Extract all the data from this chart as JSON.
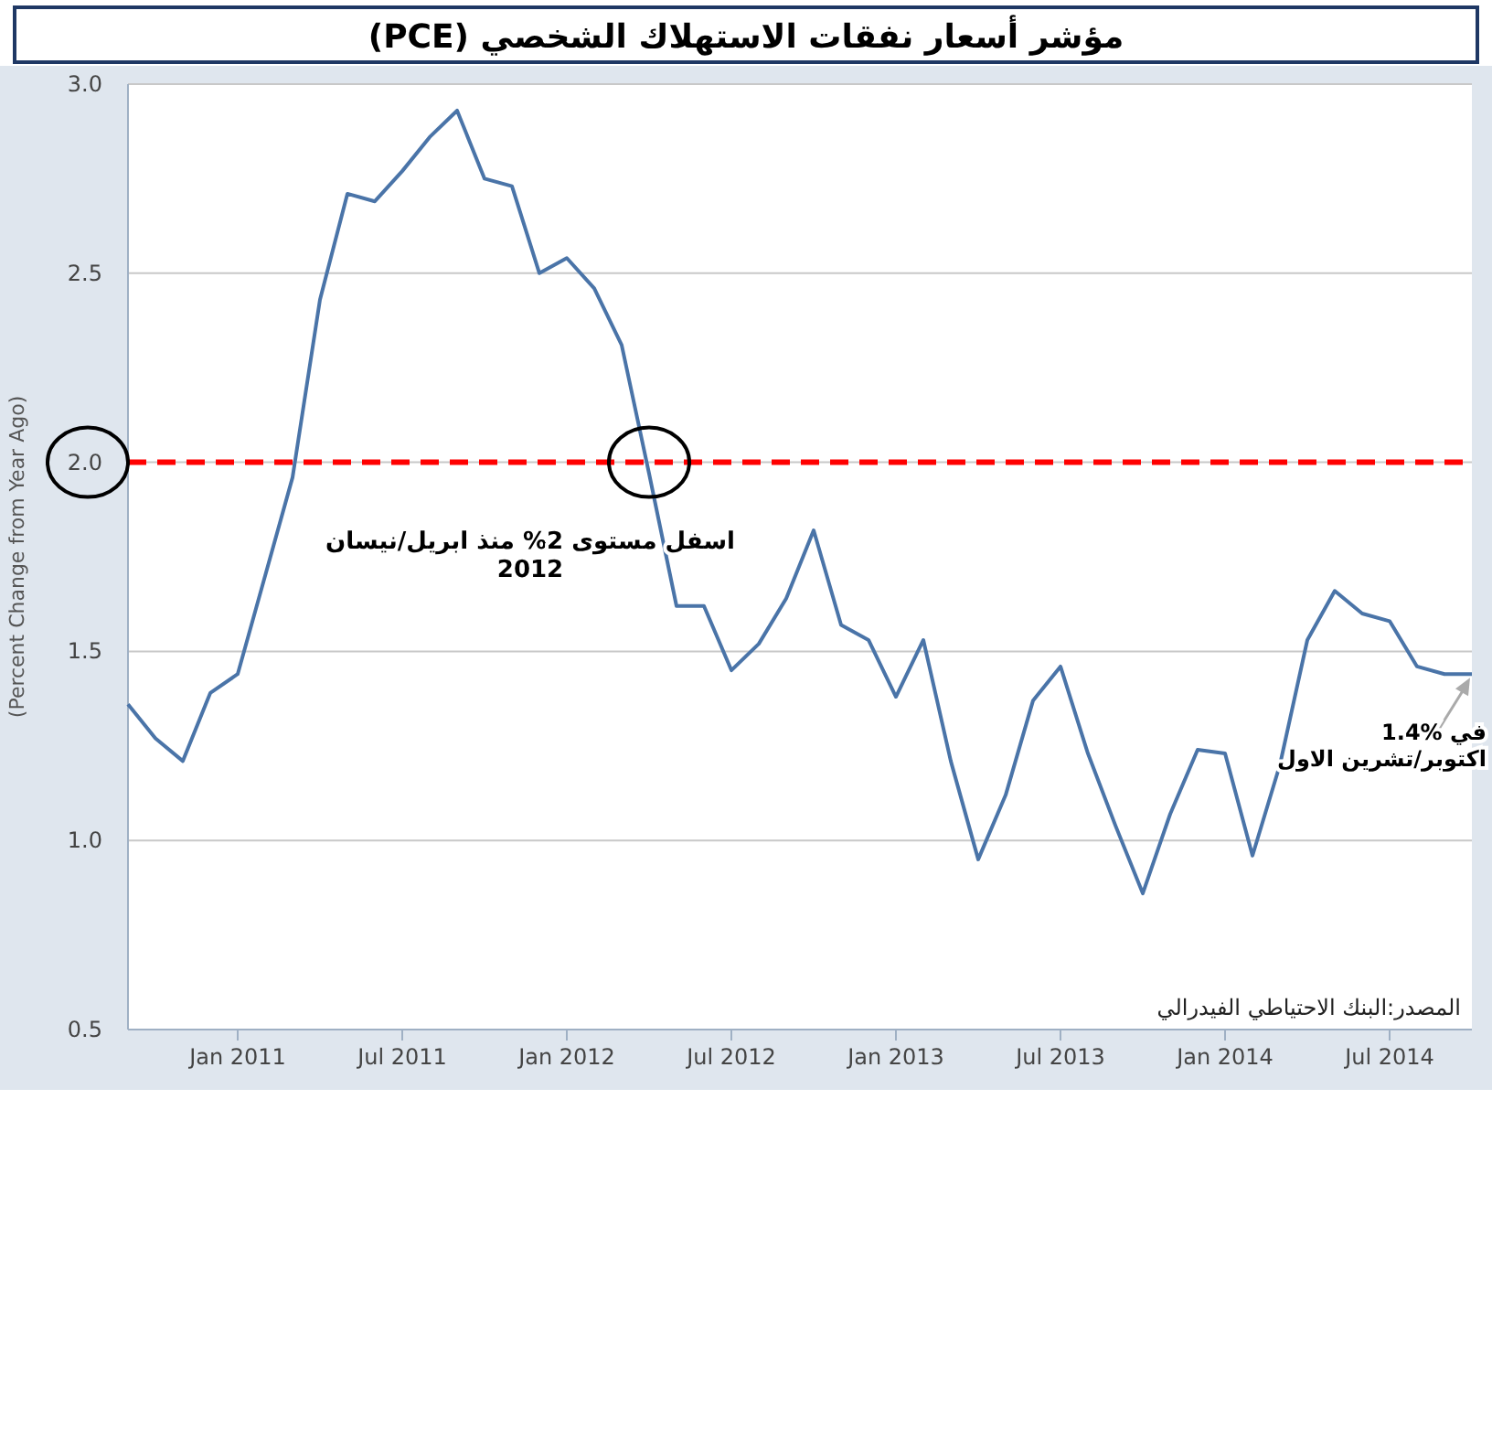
{
  "chart_data": {
    "type": "line",
    "title": "مؤشر أسعار نفقات الاستهلاك الشخصي (PCE)",
    "ylabel": "(Percent Change from Year Ago)",
    "x": [
      "2010-09",
      "2010-10",
      "2010-11",
      "2010-12",
      "2011-01",
      "2011-02",
      "2011-03",
      "2011-04",
      "2011-05",
      "2011-06",
      "2011-07",
      "2011-08",
      "2011-09",
      "2011-10",
      "2011-11",
      "2011-12",
      "2012-01",
      "2012-02",
      "2012-03",
      "2012-04",
      "2012-05",
      "2012-06",
      "2012-07",
      "2012-08",
      "2012-09",
      "2012-10",
      "2012-11",
      "2012-12",
      "2013-01",
      "2013-02",
      "2013-03",
      "2013-04",
      "2013-05",
      "2013-06",
      "2013-07",
      "2013-08",
      "2013-09",
      "2013-10",
      "2013-11",
      "2013-12",
      "2014-01",
      "2014-02",
      "2014-03",
      "2014-04",
      "2014-05",
      "2014-06",
      "2014-07",
      "2014-08",
      "2014-09",
      "2014-10"
    ],
    "series": [
      {
        "color": "#4a74a8",
        "values": [
          1.36,
          1.27,
          1.21,
          1.39,
          1.44,
          1.7,
          1.96,
          2.43,
          2.71,
          2.69,
          2.77,
          2.86,
          2.93,
          2.75,
          2.73,
          2.5,
          2.54,
          2.46,
          2.31,
          1.97,
          1.62,
          1.62,
          1.45,
          1.52,
          1.64,
          1.82,
          1.57,
          1.53,
          1.38,
          1.53,
          1.21,
          0.95,
          1.12,
          1.37,
          1.46,
          1.23,
          1.04,
          0.86,
          1.07,
          1.24,
          1.23,
          0.96,
          1.2,
          1.53,
          1.66,
          1.6,
          1.58,
          1.46,
          1.44,
          1.44
        ]
      }
    ],
    "xlim": [
      "2010-09",
      "2014-10"
    ],
    "xticks": [
      {
        "value": "2011-01",
        "label": "Jan 2011"
      },
      {
        "value": "2011-07",
        "label": "Jul 2011"
      },
      {
        "value": "2012-01",
        "label": "Jan 2012"
      },
      {
        "value": "2012-07",
        "label": "Jul 2012"
      },
      {
        "value": "2013-01",
        "label": "Jan 2013"
      },
      {
        "value": "2013-07",
        "label": "Jul 2013"
      },
      {
        "value": "2014-01",
        "label": "Jan 2014"
      },
      {
        "value": "2014-07",
        "label": "Jul 2014"
      }
    ],
    "ylim": [
      0.5,
      3.0
    ],
    "yticks": [
      {
        "value": 0.5,
        "label": "0.5"
      },
      {
        "value": 1.0,
        "label": "1.0"
      },
      {
        "value": 1.5,
        "label": "1.5"
      },
      {
        "value": 2.0,
        "label": "2.0"
      },
      {
        "value": 2.5,
        "label": "2.5"
      },
      {
        "value": 3.0,
        "label": "3.0"
      }
    ],
    "grid": "y",
    "line_style": "solid",
    "marker": "none",
    "ref_lines": [
      {
        "axis": "y",
        "value": 2.0,
        "color": "#ff0000",
        "line_style": "dashed"
      }
    ],
    "annotations": [
      {
        "text": "اسفل مستوى 2% منذ ابريل/نيسان\n2012",
        "x": "2012-04",
        "y": 2.0
      },
      {
        "text": "1.4% في\nاكتوبر/تشرين الاول",
        "x": "2014-10",
        "y": 1.44
      },
      "المصدر:البنك الاحتياطي الفيدرالي"
    ]
  }
}
